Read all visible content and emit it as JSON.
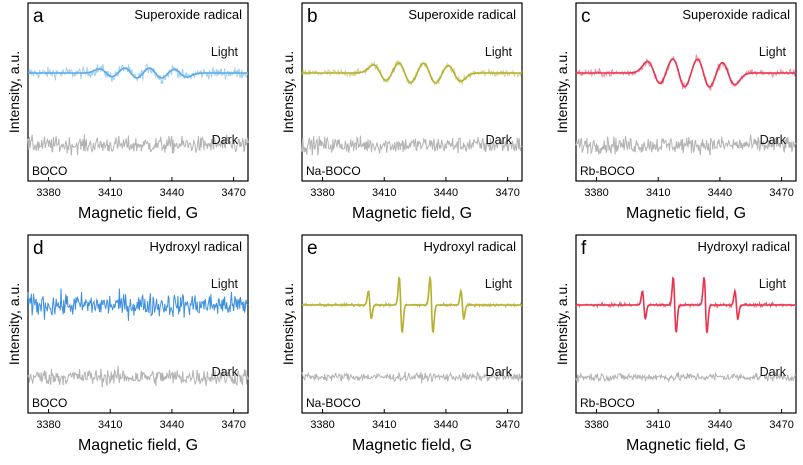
{
  "x_axis_label": "Magnetic field, G",
  "y_axis_label": "Intensity, a.u.",
  "x_ticks": [
    3380,
    3410,
    3440,
    3470
  ],
  "chart_data": [
    {
      "type": "line",
      "panel": "a",
      "title": "Superoxide radical",
      "sample": "BOCO",
      "color": "#5aa9e6",
      "xlim": [
        3370,
        3477
      ],
      "xticks": [
        3380,
        3410,
        3440,
        3470
      ],
      "xlabel": "Magnetic field, G",
      "ylabel": "Intensity, a.u.",
      "series": [
        {
          "name": "Light",
          "kind": "superoxide",
          "amplitude": 0.35,
          "noise": 0.45
        },
        {
          "name": "Dark",
          "kind": "noise",
          "noise": 0.5
        }
      ]
    },
    {
      "type": "line",
      "panel": "b",
      "title": "Superoxide radical",
      "sample": "Na-BOCO",
      "color": "#b5b02e",
      "xlim": [
        3370,
        3477
      ],
      "xticks": [
        3380,
        3410,
        3440,
        3470
      ],
      "xlabel": "Magnetic field, G",
      "ylabel": "Intensity, a.u.",
      "series": [
        {
          "name": "Light",
          "kind": "superoxide",
          "amplitude": 0.7,
          "noise": 0.3
        },
        {
          "name": "Dark",
          "kind": "noise",
          "noise": 0.5
        }
      ]
    },
    {
      "type": "line",
      "panel": "c",
      "title": "Superoxide radical",
      "sample": "Rb-BOCO",
      "color": "#e8344e",
      "xlim": [
        3370,
        3477
      ],
      "xticks": [
        3380,
        3410,
        3440,
        3470
      ],
      "xlabel": "Magnetic field, G",
      "ylabel": "Intensity, a.u.",
      "series": [
        {
          "name": "Light",
          "kind": "superoxide",
          "amplitude": 1.0,
          "noise": 0.3
        },
        {
          "name": "Dark",
          "kind": "noise",
          "noise": 0.5
        }
      ]
    },
    {
      "type": "line",
      "panel": "d",
      "title": "Hydroxyl radical",
      "sample": "BOCO",
      "color": "#3d8fe0",
      "xlim": [
        3370,
        3477
      ],
      "xticks": [
        3380,
        3410,
        3440,
        3470
      ],
      "xlabel": "Magnetic field, G",
      "ylabel": "Intensity, a.u.",
      "series": [
        {
          "name": "Light",
          "kind": "noise",
          "noise": 0.6
        },
        {
          "name": "Dark",
          "kind": "noise",
          "noise": 0.5
        }
      ]
    },
    {
      "type": "line",
      "panel": "e",
      "title": "Hydroxyl radical",
      "sample": "Na-BOCO",
      "color": "#b5b02e",
      "xlim": [
        3370,
        3477
      ],
      "xticks": [
        3380,
        3410,
        3440,
        3470
      ],
      "xlabel": "Magnetic field, G",
      "ylabel": "Intensity, a.u.",
      "series": [
        {
          "name": "Light",
          "kind": "hydroxyl",
          "peaks": [
            3403,
            3418,
            3433,
            3448
          ],
          "amplitudes": [
            1,
            2,
            2,
            1
          ],
          "noise": 0.15
        },
        {
          "name": "Dark",
          "kind": "noise",
          "noise": 0.25
        }
      ]
    },
    {
      "type": "line",
      "panel": "f",
      "title": "Hydroxyl radical",
      "sample": "Rb-BOCO",
      "color": "#e8344e",
      "xlim": [
        3370,
        3477
      ],
      "xticks": [
        3380,
        3410,
        3440,
        3470
      ],
      "xlabel": "Magnetic field, G",
      "ylabel": "Intensity, a.u.",
      "series": [
        {
          "name": "Light",
          "kind": "hydroxyl",
          "peaks": [
            3403,
            3418,
            3433,
            3448
          ],
          "amplitudes": [
            1,
            2,
            2,
            1
          ],
          "noise": 0.15
        },
        {
          "name": "Dark",
          "kind": "noise",
          "noise": 0.25
        }
      ]
    }
  ]
}
